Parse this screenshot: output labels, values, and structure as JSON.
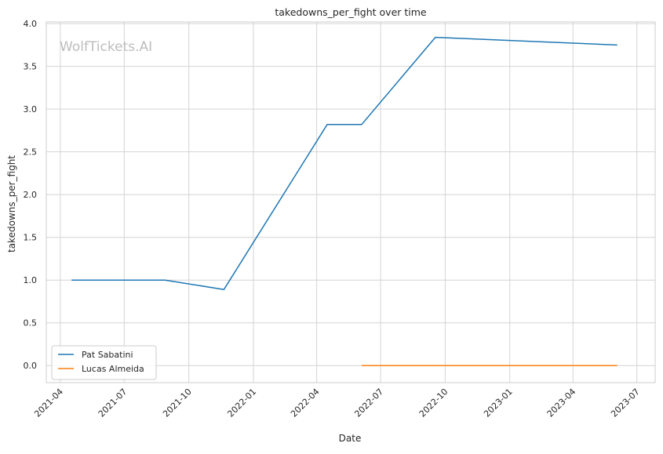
{
  "chart_data": {
    "type": "line",
    "title": "takedowns_per_fight over time",
    "xlabel": "Date",
    "ylabel": "takedowns_per_fight",
    "watermark": "WolfTickets.AI",
    "xlim": [
      "2021-03-12",
      "2023-07-27"
    ],
    "ylim": [
      -0.2,
      4.02
    ],
    "x_ticks": [
      "2021-04-01",
      "2021-07-01",
      "2021-10-01",
      "2022-01-01",
      "2022-04-01",
      "2022-07-01",
      "2022-10-01",
      "2023-01-01",
      "2023-04-01",
      "2023-07-01"
    ],
    "x_tick_labels": [
      "2021-04",
      "2021-07",
      "2021-10",
      "2022-01",
      "2022-04",
      "2022-07",
      "2022-10",
      "2023-01",
      "2023-04",
      "2023-07"
    ],
    "y_ticks": [
      0.0,
      0.5,
      1.0,
      1.5,
      2.0,
      2.5,
      3.0,
      3.5,
      4.0
    ],
    "y_tick_labels": [
      "0.0",
      "0.5",
      "1.0",
      "1.5",
      "2.0",
      "2.5",
      "3.0",
      "3.5",
      "4.0"
    ],
    "grid": true,
    "legend_position": "lower-left",
    "series": [
      {
        "name": "Pat Sabatini",
        "color": "#1f77b4",
        "points": [
          {
            "x": "2021-04-17",
            "y": 1.0
          },
          {
            "x": "2021-08-28",
            "y": 1.0
          },
          {
            "x": "2021-11-20",
            "y": 0.89
          },
          {
            "x": "2022-04-16",
            "y": 2.82
          },
          {
            "x": "2022-06-04",
            "y": 2.82
          },
          {
            "x": "2022-09-17",
            "y": 3.84
          },
          {
            "x": "2023-06-03",
            "y": 3.75
          }
        ]
      },
      {
        "name": "Lucas Almeida",
        "color": "#ff7f0e",
        "points": [
          {
            "x": "2022-06-04",
            "y": 0.0
          },
          {
            "x": "2023-06-03",
            "y": 0.0
          }
        ]
      }
    ]
  }
}
